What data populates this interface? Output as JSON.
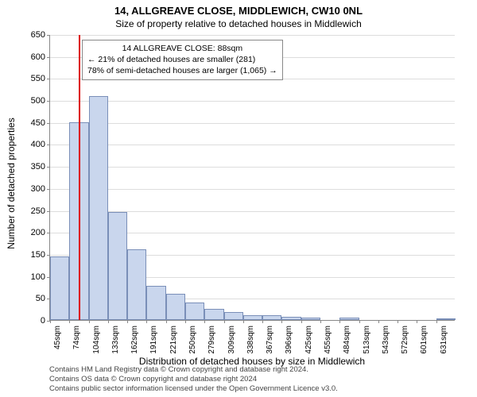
{
  "title": "14, ALLGREAVE CLOSE, MIDDLEWICH, CW10 0NL",
  "subtitle": "Size of property relative to detached houses in Middlewich",
  "ylabel": "Number of detached properties",
  "xlabel": "Distribution of detached houses by size in Middlewich",
  "info_box": {
    "line1": "14 ALLGREAVE CLOSE: 88sqm",
    "line2": "← 21% of detached houses are smaller (281)",
    "line3": "78% of semi-detached houses are larger (1,065) →"
  },
  "footer": {
    "line1": "Contains HM Land Registry data © Crown copyright and database right 2024.",
    "line2": "Contains OS data © Crown copyright and database right 2024",
    "line3": "Contains public sector information licensed under the Open Government Licence v3.0."
  },
  "chart": {
    "type": "histogram",
    "ylim": [
      0,
      650
    ],
    "ytick_step": 50,
    "xticks": [
      "45sqm",
      "74sqm",
      "104sqm",
      "133sqm",
      "162sqm",
      "191sqm",
      "221sqm",
      "250sqm",
      "279sqm",
      "309sqm",
      "338sqm",
      "367sqm",
      "396sqm",
      "425sqm",
      "455sqm",
      "484sqm",
      "513sqm",
      "543sqm",
      "572sqm",
      "601sqm",
      "631sqm"
    ],
    "xtick_positions": [
      0,
      1,
      2,
      3,
      4,
      5,
      6,
      7,
      8,
      9,
      10,
      11,
      12,
      13,
      14,
      15,
      16,
      17,
      18,
      19,
      20
    ],
    "n_bins": 21,
    "bar_color": "#c9d6ed",
    "bar_border": "#7a8fb8",
    "grid_color": "#dddddd",
    "axis_color": "#888888",
    "marker_color": "#dd0000",
    "marker_bin": 1.47,
    "values": [
      145,
      450,
      510,
      245,
      160,
      78,
      60,
      40,
      25,
      18,
      10,
      10,
      8,
      6,
      0,
      5,
      0,
      0,
      0,
      0,
      4
    ]
  }
}
